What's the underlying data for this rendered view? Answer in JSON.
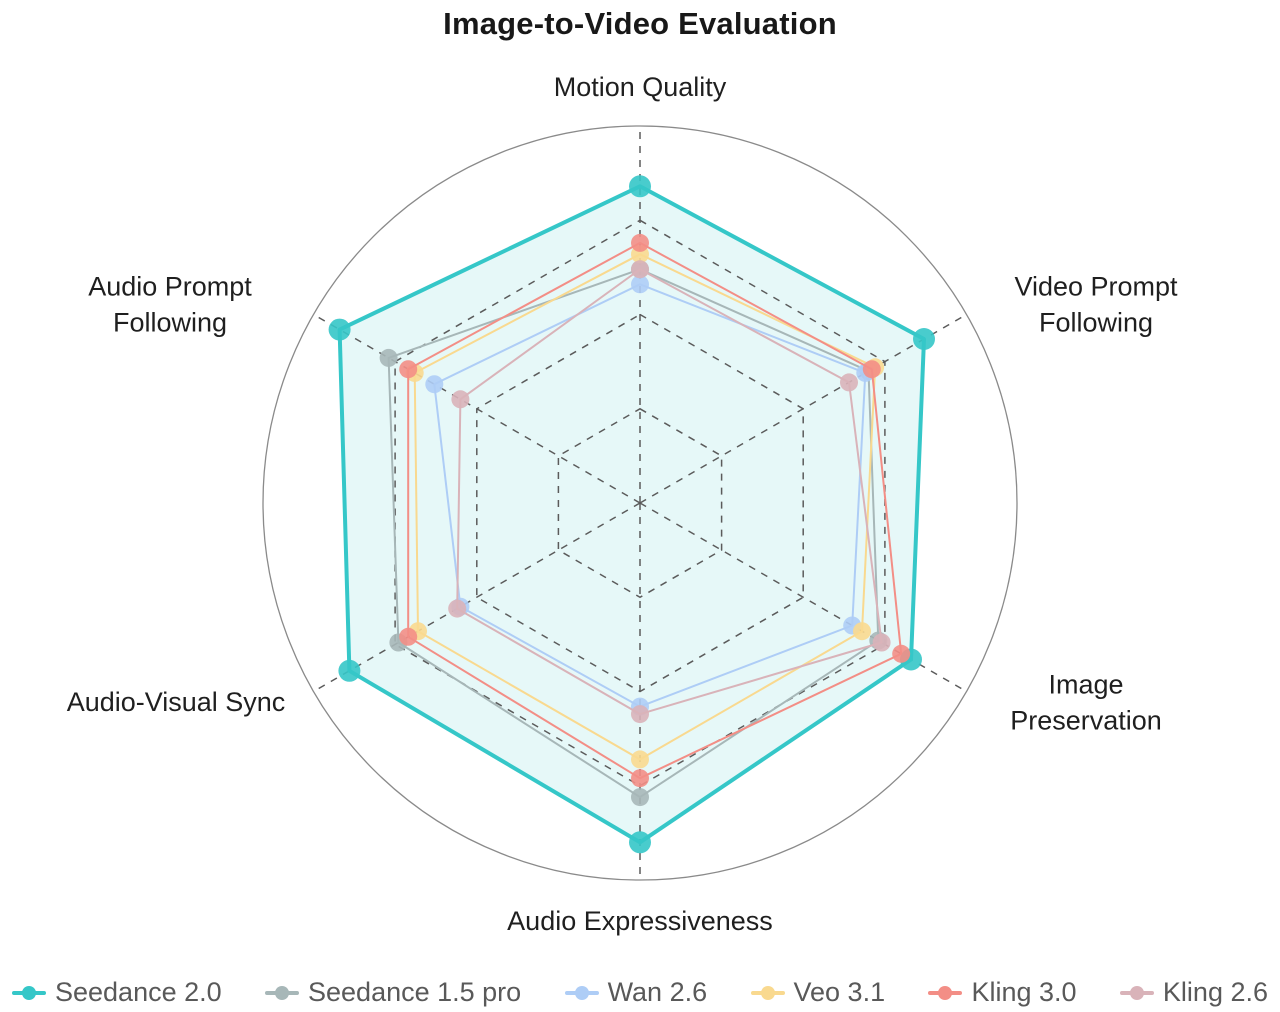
{
  "title": "Image-to-Video Evaluation",
  "chart_data": {
    "type": "radar",
    "title": "Image-to-Video Evaluation",
    "categories": [
      "Motion Quality",
      "Video Prompt Following",
      "Image Preservation",
      "Audio Expressiveness",
      "Audio-Visual Sync",
      "Audio Prompt Following"
    ],
    "scale": {
      "min": 0,
      "max": 1.0,
      "rings": [
        0.25,
        0.5,
        0.75,
        1.0
      ],
      "grid_style": "dashed hexagons, solid outer circle",
      "grid_color": "#5b5b5b",
      "outer_circle_color": "#8a8a8a"
    },
    "legend_position": "bottom",
    "series": [
      {
        "name": "Seedance 2.0",
        "color": "#35C7C8",
        "area_fill": true,
        "fill_opacity": 0.12,
        "line_width": 4,
        "marker_radius": 11,
        "values": [
          0.84,
          0.87,
          0.83,
          0.9,
          0.89,
          0.92
        ]
      },
      {
        "name": "Seedance 1.5 pro",
        "color": "#A7B7B8",
        "area_fill": false,
        "line_width": 2,
        "marker_radius": 9,
        "values": [
          0.62,
          0.7,
          0.73,
          0.78,
          0.74,
          0.77
        ]
      },
      {
        "name": "Wan 2.6",
        "color": "#AECDF6",
        "area_fill": false,
        "line_width": 2,
        "marker_radius": 9,
        "values": [
          0.58,
          0.69,
          0.65,
          0.54,
          0.55,
          0.63
        ]
      },
      {
        "name": "Veo 3.1",
        "color": "#F9D98F",
        "area_fill": false,
        "line_width": 2,
        "marker_radius": 9,
        "values": [
          0.66,
          0.72,
          0.68,
          0.68,
          0.68,
          0.69
        ]
      },
      {
        "name": "Kling 3.0",
        "color": "#F38E86",
        "area_fill": false,
        "line_width": 2,
        "marker_radius": 9,
        "values": [
          0.69,
          0.71,
          0.8,
          0.73,
          0.71,
          0.71
        ]
      },
      {
        "name": "Kling 2.6",
        "color": "#D9B3B9",
        "area_fill": false,
        "line_width": 2,
        "marker_radius": 9,
        "values": [
          0.62,
          0.64,
          0.74,
          0.56,
          0.56,
          0.55
        ]
      }
    ]
  }
}
